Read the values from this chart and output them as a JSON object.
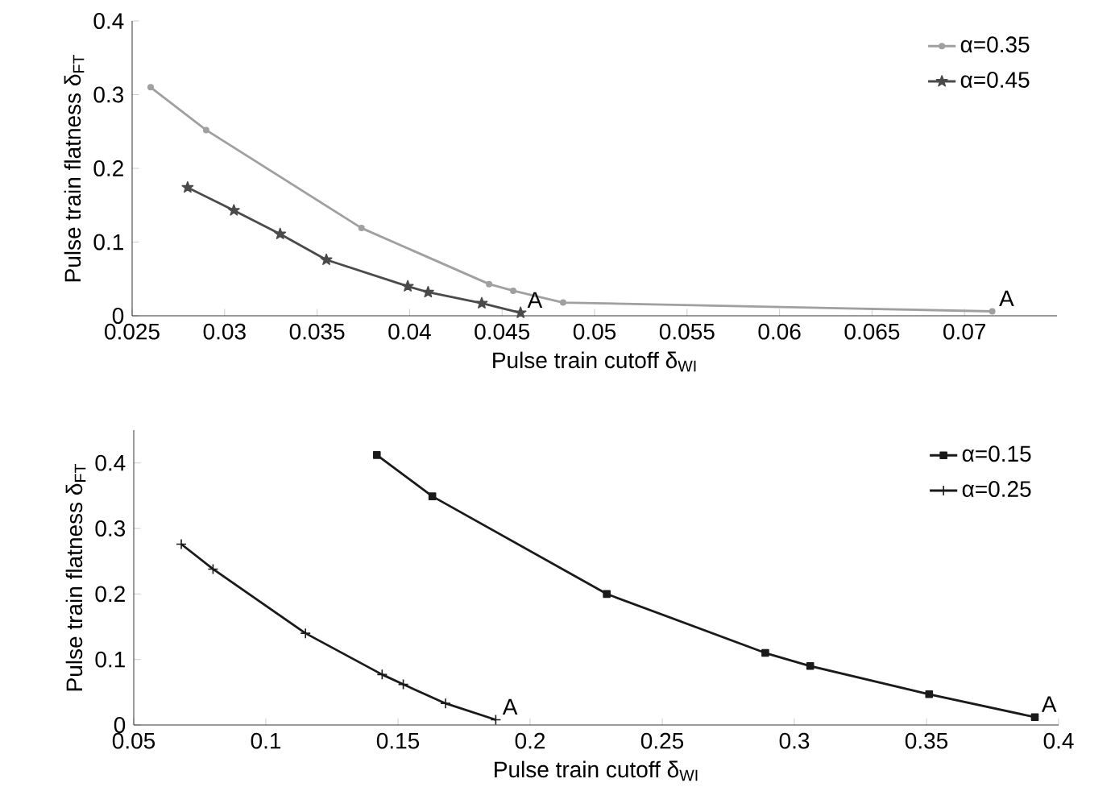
{
  "chart_data": [
    {
      "type": "line",
      "xlabel": "Pulse train cutoff δ$_{WI}$",
      "ylabel": "Pulse train flatness δ$_{FT}$",
      "xlim": [
        0.025,
        0.075
      ],
      "ylim": [
        0,
        0.4
      ],
      "xticks": [
        0.025,
        0.03,
        0.035,
        0.04,
        0.045,
        0.05,
        0.055,
        0.06,
        0.065,
        0.07
      ],
      "yticks": [
        0,
        0.1,
        0.2,
        0.3,
        0.4
      ],
      "legend": "top right",
      "series": [
        {
          "name": "α=0.35",
          "color": "#a0a0a0",
          "marker": "circle",
          "x": [
            0.026,
            0.029,
            0.0374,
            0.0443,
            0.0456,
            0.0483,
            0.0715
          ],
          "values": [
            0.31,
            0.252,
            0.119,
            0.043,
            0.034,
            0.018,
            0.006
          ]
        },
        {
          "name": "α=0.45",
          "color": "#4a4a4a",
          "marker": "star",
          "x": [
            0.028,
            0.0305,
            0.033,
            0.0355,
            0.0399,
            0.041,
            0.0439,
            0.046
          ],
          "values": [
            0.174,
            0.143,
            0.111,
            0.076,
            0.04,
            0.032,
            0.017,
            0.004
          ]
        }
      ],
      "annotations": [
        {
          "text": "A",
          "x": 0.046,
          "y": 0.004
        },
        {
          "text": "A",
          "x": 0.0715,
          "y": 0.006
        }
      ]
    },
    {
      "type": "line",
      "xlabel": "Pulse train cutoff δ$_{WI}$",
      "ylabel": "Pulse train flatness δ$_{FT}$",
      "xlim": [
        0.05,
        0.4
      ],
      "ylim": [
        0,
        0.45
      ],
      "xticks": [
        0.05,
        0.1,
        0.15,
        0.2,
        0.25,
        0.3,
        0.35,
        0.4
      ],
      "yticks": [
        0,
        0.1,
        0.2,
        0.3,
        0.4
      ],
      "legend": "top right",
      "series": [
        {
          "name": "α=0.15",
          "color": "#1a1a1a",
          "marker": "square",
          "x": [
            0.142,
            0.163,
            0.229,
            0.289,
            0.306,
            0.351,
            0.391
          ],
          "values": [
            0.412,
            0.349,
            0.2,
            0.11,
            0.09,
            0.047,
            0.012
          ]
        },
        {
          "name": "α=0.25",
          "color": "#1a1a1a",
          "marker": "cross",
          "x": [
            0.068,
            0.08,
            0.115,
            0.144,
            0.152,
            0.168,
            0.187
          ],
          "values": [
            0.276,
            0.238,
            0.14,
            0.077,
            0.062,
            0.033,
            0.008
          ]
        }
      ],
      "annotations": [
        {
          "text": "A",
          "x": 0.187,
          "y": 0.008
        },
        {
          "text": "A",
          "x": 0.391,
          "y": 0.012
        }
      ]
    }
  ]
}
